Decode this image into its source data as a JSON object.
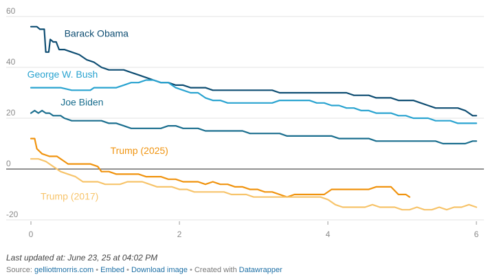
{
  "chart_data": {
    "type": "line",
    "xlim": [
      0,
      6
    ],
    "ylim": [
      -20,
      60
    ],
    "x_ticks": [
      "0",
      "2",
      "4",
      "6"
    ],
    "y_ticks": [
      {
        "value": 60,
        "label": "60"
      },
      {
        "value": 40,
        "label": "40"
      },
      {
        "value": 20,
        "label": "20"
      },
      {
        "value": 0,
        "label": "0"
      },
      {
        "value": -20,
        "label": "-20"
      }
    ],
    "grid": true,
    "series": [
      {
        "name": "Barack Obama",
        "color": "#0e4d72",
        "points": [
          [
            0,
            56
          ],
          [
            0.08,
            56
          ],
          [
            0.12,
            55
          ],
          [
            0.18,
            55
          ],
          [
            0.2,
            46
          ],
          [
            0.24,
            46
          ],
          [
            0.26,
            51
          ],
          [
            0.3,
            50
          ],
          [
            0.34,
            50
          ],
          [
            0.38,
            47
          ],
          [
            0.45,
            47
          ],
          [
            0.55,
            46
          ],
          [
            0.65,
            45
          ],
          [
            0.75,
            43
          ],
          [
            0.85,
            42
          ],
          [
            0.95,
            40
          ],
          [
            1.05,
            39
          ],
          [
            1.15,
            39
          ],
          [
            1.25,
            39
          ],
          [
            1.35,
            38
          ],
          [
            1.45,
            37
          ],
          [
            1.55,
            36
          ],
          [
            1.65,
            35
          ],
          [
            1.75,
            34
          ],
          [
            1.85,
            34
          ],
          [
            1.95,
            33
          ],
          [
            2.05,
            33
          ],
          [
            2.15,
            32
          ],
          [
            2.25,
            32
          ],
          [
            2.35,
            32
          ],
          [
            2.45,
            31
          ],
          [
            2.55,
            31
          ],
          [
            2.65,
            31
          ],
          [
            2.75,
            31
          ],
          [
            2.85,
            31
          ],
          [
            2.95,
            31
          ],
          [
            3.05,
            31
          ],
          [
            3.15,
            31
          ],
          [
            3.25,
            31
          ],
          [
            3.35,
            30
          ],
          [
            3.45,
            30
          ],
          [
            3.55,
            30
          ],
          [
            3.65,
            30
          ],
          [
            3.75,
            30
          ],
          [
            3.85,
            30
          ],
          [
            3.95,
            30
          ],
          [
            4.05,
            30
          ],
          [
            4.15,
            30
          ],
          [
            4.25,
            30
          ],
          [
            4.35,
            29
          ],
          [
            4.45,
            29
          ],
          [
            4.55,
            29
          ],
          [
            4.65,
            28
          ],
          [
            4.75,
            28
          ],
          [
            4.85,
            28
          ],
          [
            4.95,
            27
          ],
          [
            5.05,
            27
          ],
          [
            5.15,
            27
          ],
          [
            5.25,
            26
          ],
          [
            5.35,
            25
          ],
          [
            5.45,
            24
          ],
          [
            5.55,
            24
          ],
          [
            5.65,
            24
          ],
          [
            5.75,
            24
          ],
          [
            5.85,
            23
          ],
          [
            5.95,
            21
          ],
          [
            6,
            21
          ]
        ],
        "label": {
          "text": "Barack Obama",
          "x": 0.45,
          "y": 52,
          "anchor": "start"
        }
      },
      {
        "name": "George W. Bush",
        "color": "#29a3d0",
        "points": [
          [
            0,
            32
          ],
          [
            0.2,
            32
          ],
          [
            0.4,
            32
          ],
          [
            0.55,
            31
          ],
          [
            0.7,
            31
          ],
          [
            0.8,
            31
          ],
          [
            0.85,
            32
          ],
          [
            0.95,
            32
          ],
          [
            1.05,
            32
          ],
          [
            1.15,
            32
          ],
          [
            1.25,
            33
          ],
          [
            1.35,
            34
          ],
          [
            1.45,
            34
          ],
          [
            1.55,
            35
          ],
          [
            1.65,
            35
          ],
          [
            1.75,
            34
          ],
          [
            1.85,
            34
          ],
          [
            1.95,
            32
          ],
          [
            2.05,
            31
          ],
          [
            2.15,
            30
          ],
          [
            2.25,
            30
          ],
          [
            2.35,
            28
          ],
          [
            2.45,
            27
          ],
          [
            2.55,
            27
          ],
          [
            2.65,
            26
          ],
          [
            2.75,
            26
          ],
          [
            2.85,
            26
          ],
          [
            2.95,
            26
          ],
          [
            3.05,
            26
          ],
          [
            3.15,
            26
          ],
          [
            3.25,
            26
          ],
          [
            3.35,
            27
          ],
          [
            3.45,
            27
          ],
          [
            3.55,
            27
          ],
          [
            3.65,
            27
          ],
          [
            3.75,
            27
          ],
          [
            3.85,
            26
          ],
          [
            3.95,
            26
          ],
          [
            4.05,
            25
          ],
          [
            4.15,
            25
          ],
          [
            4.25,
            24
          ],
          [
            4.35,
            24
          ],
          [
            4.45,
            23
          ],
          [
            4.55,
            23
          ],
          [
            4.65,
            22
          ],
          [
            4.75,
            22
          ],
          [
            4.85,
            22
          ],
          [
            4.95,
            21
          ],
          [
            5.05,
            21
          ],
          [
            5.15,
            20
          ],
          [
            5.25,
            20
          ],
          [
            5.35,
            20
          ],
          [
            5.45,
            19
          ],
          [
            5.55,
            19
          ],
          [
            5.65,
            19
          ],
          [
            5.75,
            18
          ],
          [
            5.85,
            18
          ],
          [
            5.95,
            18
          ],
          [
            6,
            18
          ]
        ],
        "label": {
          "text": "George W. Bush",
          "x": -0.05,
          "y": 36,
          "anchor": "start"
        }
      },
      {
        "name": "Joe Biden",
        "color": "#1a6e8e",
        "points": [
          [
            0,
            22
          ],
          [
            0.05,
            23
          ],
          [
            0.1,
            22
          ],
          [
            0.15,
            23
          ],
          [
            0.2,
            22
          ],
          [
            0.25,
            22
          ],
          [
            0.3,
            21
          ],
          [
            0.4,
            21
          ],
          [
            0.45,
            20
          ],
          [
            0.55,
            19
          ],
          [
            0.65,
            19
          ],
          [
            0.75,
            19
          ],
          [
            0.85,
            19
          ],
          [
            0.95,
            19
          ],
          [
            1.05,
            18
          ],
          [
            1.15,
            18
          ],
          [
            1.25,
            17
          ],
          [
            1.35,
            16
          ],
          [
            1.45,
            16
          ],
          [
            1.55,
            16
          ],
          [
            1.65,
            16
          ],
          [
            1.75,
            16
          ],
          [
            1.85,
            17
          ],
          [
            1.95,
            17
          ],
          [
            2.05,
            16
          ],
          [
            2.15,
            16
          ],
          [
            2.25,
            16
          ],
          [
            2.35,
            15
          ],
          [
            2.45,
            15
          ],
          [
            2.55,
            15
          ],
          [
            2.65,
            15
          ],
          [
            2.75,
            15
          ],
          [
            2.85,
            15
          ],
          [
            2.95,
            14
          ],
          [
            3.05,
            14
          ],
          [
            3.15,
            14
          ],
          [
            3.25,
            14
          ],
          [
            3.35,
            14
          ],
          [
            3.45,
            13
          ],
          [
            3.55,
            13
          ],
          [
            3.65,
            13
          ],
          [
            3.75,
            13
          ],
          [
            3.85,
            13
          ],
          [
            3.95,
            13
          ],
          [
            4.05,
            13
          ],
          [
            4.15,
            12
          ],
          [
            4.25,
            12
          ],
          [
            4.35,
            12
          ],
          [
            4.45,
            12
          ],
          [
            4.55,
            12
          ],
          [
            4.65,
            11
          ],
          [
            4.75,
            11
          ],
          [
            4.85,
            11
          ],
          [
            4.95,
            11
          ],
          [
            5.05,
            11
          ],
          [
            5.15,
            11
          ],
          [
            5.25,
            11
          ],
          [
            5.35,
            11
          ],
          [
            5.45,
            11
          ],
          [
            5.55,
            10
          ],
          [
            5.65,
            10
          ],
          [
            5.75,
            10
          ],
          [
            5.85,
            10
          ],
          [
            5.95,
            11
          ],
          [
            6,
            11
          ]
        ],
        "label": {
          "text": "Joe Biden",
          "x": 0.4,
          "y": 25,
          "anchor": "start"
        }
      },
      {
        "name": "Trump (2025)",
        "color": "#f0930e",
        "points": [
          [
            0,
            12
          ],
          [
            0.05,
            12
          ],
          [
            0.08,
            8
          ],
          [
            0.15,
            6
          ],
          [
            0.25,
            5
          ],
          [
            0.35,
            5
          ],
          [
            0.4,
            4
          ],
          [
            0.45,
            3
          ],
          [
            0.5,
            2
          ],
          [
            0.6,
            2
          ],
          [
            0.7,
            2
          ],
          [
            0.8,
            2
          ],
          [
            0.9,
            1
          ],
          [
            0.95,
            -1
          ],
          [
            1.05,
            -1
          ],
          [
            1.15,
            -2
          ],
          [
            1.25,
            -2
          ],
          [
            1.35,
            -2
          ],
          [
            1.45,
            -2
          ],
          [
            1.55,
            -3
          ],
          [
            1.65,
            -3
          ],
          [
            1.75,
            -3
          ],
          [
            1.85,
            -4
          ],
          [
            1.95,
            -4
          ],
          [
            2.05,
            -5
          ],
          [
            2.15,
            -5
          ],
          [
            2.25,
            -5
          ],
          [
            2.35,
            -6
          ],
          [
            2.45,
            -5
          ],
          [
            2.55,
            -6
          ],
          [
            2.65,
            -6
          ],
          [
            2.75,
            -7
          ],
          [
            2.85,
            -7
          ],
          [
            2.95,
            -8
          ],
          [
            3.05,
            -8
          ],
          [
            3.15,
            -9
          ],
          [
            3.25,
            -9
          ],
          [
            3.35,
            -10
          ],
          [
            3.45,
            -11
          ],
          [
            3.55,
            -10
          ],
          [
            3.65,
            -10
          ],
          [
            3.75,
            -10
          ],
          [
            3.85,
            -10
          ],
          [
            3.95,
            -10
          ],
          [
            4.05,
            -8
          ],
          [
            4.15,
            -8
          ],
          [
            4.25,
            -8
          ],
          [
            4.35,
            -8
          ],
          [
            4.45,
            -8
          ],
          [
            4.55,
            -8
          ],
          [
            4.65,
            -7
          ],
          [
            4.75,
            -7
          ],
          [
            4.85,
            -7
          ],
          [
            4.95,
            -10
          ],
          [
            5.05,
            -10
          ],
          [
            5.1,
            -11
          ]
        ],
        "label": {
          "text": "Trump (2025)",
          "x": 1.07,
          "y": 6,
          "anchor": "start"
        }
      },
      {
        "name": "Trump (2017)",
        "color": "#f7c46b",
        "points": [
          [
            0,
            4
          ],
          [
            0.1,
            4
          ],
          [
            0.2,
            3
          ],
          [
            0.3,
            1
          ],
          [
            0.4,
            -1
          ],
          [
            0.5,
            -2
          ],
          [
            0.6,
            -3
          ],
          [
            0.7,
            -5
          ],
          [
            0.8,
            -5
          ],
          [
            0.9,
            -5
          ],
          [
            1.0,
            -6
          ],
          [
            1.1,
            -6
          ],
          [
            1.2,
            -6
          ],
          [
            1.3,
            -5
          ],
          [
            1.4,
            -5
          ],
          [
            1.5,
            -5
          ],
          [
            1.6,
            -6
          ],
          [
            1.7,
            -7
          ],
          [
            1.8,
            -7
          ],
          [
            1.9,
            -7
          ],
          [
            2.0,
            -8
          ],
          [
            2.1,
            -8
          ],
          [
            2.2,
            -9
          ],
          [
            2.3,
            -9
          ],
          [
            2.4,
            -9
          ],
          [
            2.5,
            -9
          ],
          [
            2.6,
            -9
          ],
          [
            2.7,
            -10
          ],
          [
            2.8,
            -10
          ],
          [
            2.9,
            -10
          ],
          [
            3.0,
            -11
          ],
          [
            3.1,
            -11
          ],
          [
            3.2,
            -11
          ],
          [
            3.3,
            -11
          ],
          [
            3.4,
            -11
          ],
          [
            3.5,
            -11
          ],
          [
            3.6,
            -11
          ],
          [
            3.7,
            -11
          ],
          [
            3.8,
            -11
          ],
          [
            3.9,
            -11
          ],
          [
            4.0,
            -12
          ],
          [
            4.1,
            -14
          ],
          [
            4.2,
            -15
          ],
          [
            4.3,
            -15
          ],
          [
            4.4,
            -15
          ],
          [
            4.5,
            -15
          ],
          [
            4.6,
            -14
          ],
          [
            4.7,
            -15
          ],
          [
            4.8,
            -15
          ],
          [
            4.9,
            -15
          ],
          [
            5.0,
            -16
          ],
          [
            5.1,
            -16
          ],
          [
            5.2,
            -15
          ],
          [
            5.3,
            -16
          ],
          [
            5.4,
            -16
          ],
          [
            5.5,
            -15
          ],
          [
            5.6,
            -16
          ],
          [
            5.7,
            -15
          ],
          [
            5.8,
            -15
          ],
          [
            5.9,
            -14
          ],
          [
            6,
            -15
          ]
        ],
        "label": {
          "text": "Trump (2017)",
          "x": 0.13,
          "y": -12,
          "anchor": "start"
        }
      }
    ]
  },
  "footer": {
    "updated": "Last updated at: June 23, 25 at 04:02 PM",
    "source_prefix": "Source: ",
    "source_link": "gelliottmorris.com",
    "sep": " • ",
    "embed": "Embed",
    "download": "Download image",
    "created_prefix": "Created with ",
    "created_link": "Datawrapper"
  }
}
